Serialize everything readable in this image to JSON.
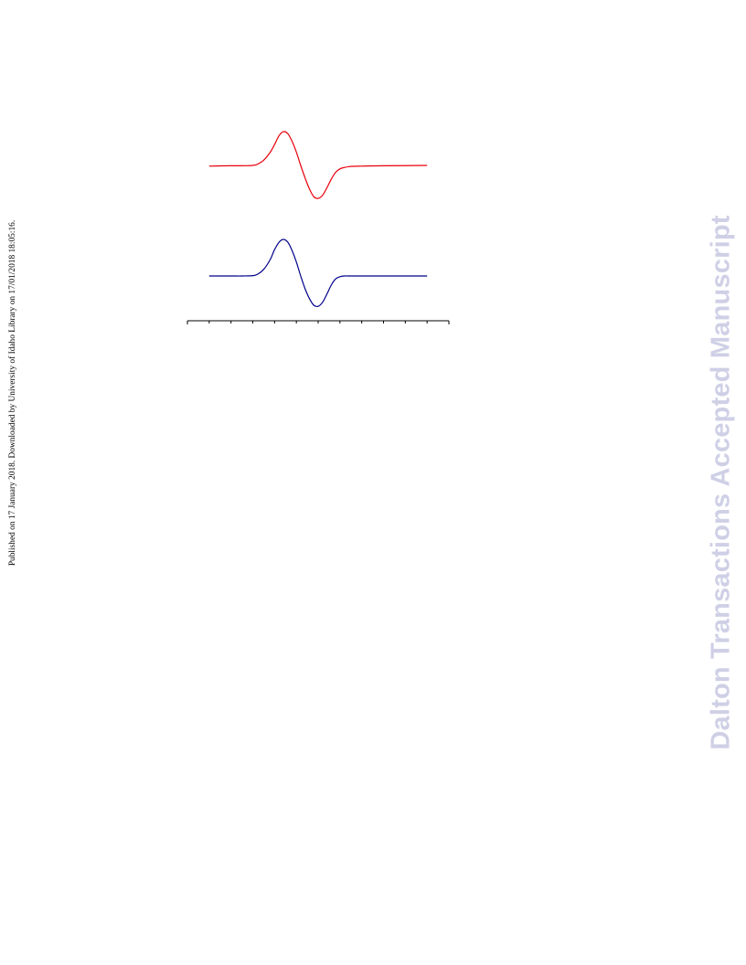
{
  "page": {
    "side_note": "Published on 17 January 2018. Downloaded by University of Idaho Library on 17/01/2018 18:05:16.",
    "watermark": "Dalton Transactions Accepted Manuscript"
  },
  "chart_data": {
    "type": "line",
    "title": "",
    "xlabel": "",
    "ylabel": "",
    "xlim": [
      0,
      12
    ],
    "x_ticks": [
      0,
      1,
      2,
      3,
      4,
      5,
      6,
      7,
      8,
      9,
      10,
      11,
      12
    ],
    "tick_labels": [],
    "grid": false,
    "legend": "none",
    "series": [
      {
        "color": "#e8000b",
        "x": [
          1.0,
          2.0,
          2.5,
          3.0,
          3.2,
          3.5,
          3.8,
          4.0,
          4.2,
          4.4,
          4.6,
          4.8,
          5.0,
          5.2,
          5.4,
          5.6,
          5.8,
          6.0,
          6.2,
          6.4,
          6.6,
          6.8,
          7.0,
          7.2,
          7.5,
          8.0,
          9.0,
          11.0
        ],
        "y": [
          -0.02,
          -0.01,
          -0.01,
          0.0,
          0.03,
          0.15,
          0.38,
          0.6,
          0.85,
          0.97,
          0.92,
          0.7,
          0.38,
          0.0,
          -0.36,
          -0.68,
          -0.9,
          -0.95,
          -0.86,
          -0.65,
          -0.4,
          -0.2,
          -0.1,
          -0.06,
          -0.03,
          -0.02,
          -0.01,
          0.0
        ]
      },
      {
        "color": "#00008b",
        "x": [
          1.0,
          2.0,
          2.5,
          3.0,
          3.2,
          3.5,
          3.8,
          4.0,
          4.2,
          4.4,
          4.6,
          4.8,
          5.0,
          5.2,
          5.4,
          5.6,
          5.8,
          6.0,
          6.2,
          6.4,
          6.6,
          6.8,
          7.0,
          7.2,
          7.5,
          8.0,
          9.0,
          11.0
        ],
        "y": [
          0.0,
          0.0,
          0.0,
          0.01,
          0.04,
          0.18,
          0.45,
          0.72,
          0.92,
          1.0,
          0.93,
          0.7,
          0.38,
          0.0,
          -0.35,
          -0.62,
          -0.8,
          -0.83,
          -0.72,
          -0.5,
          -0.25,
          -0.08,
          -0.02,
          0.0,
          0.0,
          0.0,
          0.0,
          0.0
        ]
      }
    ]
  }
}
